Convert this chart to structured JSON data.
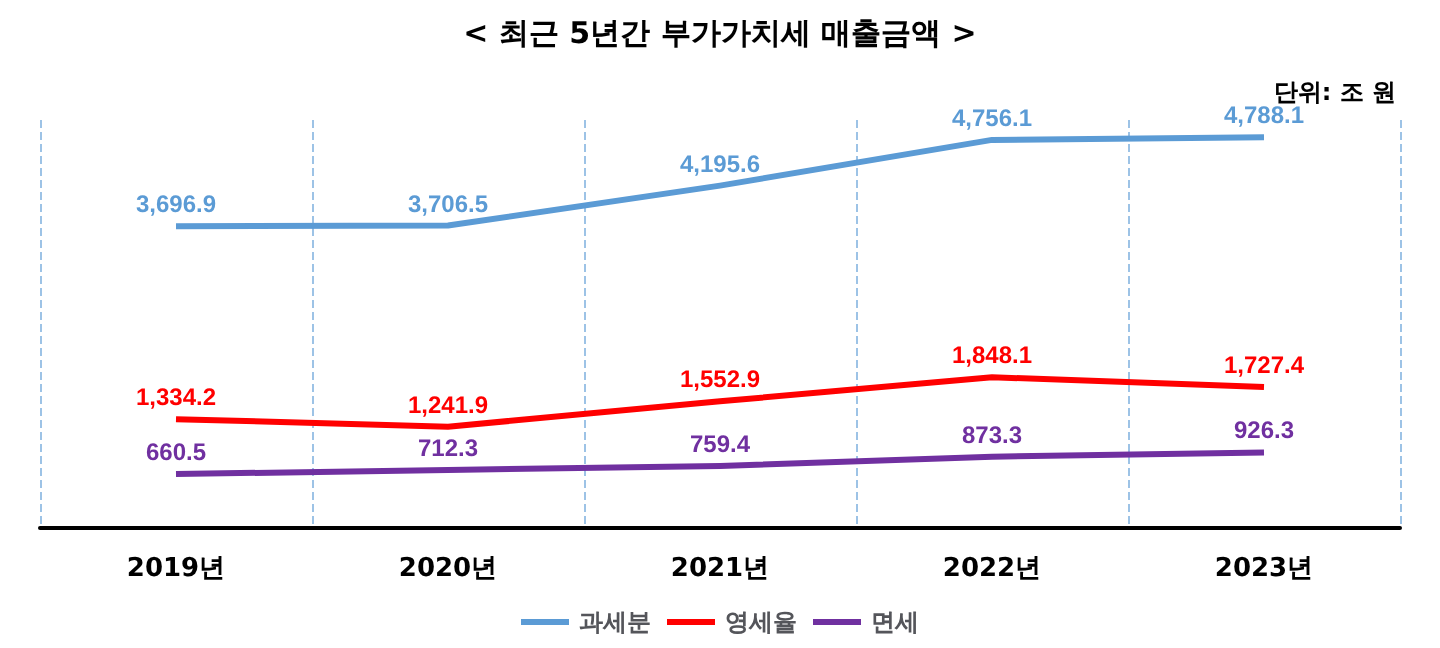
{
  "chart_data": {
    "type": "line",
    "title": "< 최근 5년간 부가가치세 매출금액 >",
    "annotations": [
      "단위: 조 원"
    ],
    "categories": [
      "2019년",
      "2020년",
      "2021년",
      "2022년",
      "2023년"
    ],
    "series": [
      {
        "name": "과세분",
        "color": "#5b9bd5",
        "values": [
          3696.9,
          3706.5,
          4195.6,
          4756.1,
          4788.1
        ],
        "value_labels": [
          "3,696.9",
          "3,706.5",
          "4,195.6",
          "4,756.1",
          "4,788.1"
        ]
      },
      {
        "name": "영세율",
        "color": "#ff0000",
        "values": [
          1334.2,
          1241.9,
          1552.9,
          1848.1,
          1727.4
        ],
        "value_labels": [
          "1,334.2",
          "1,241.9",
          "1,552.9",
          "1,848.1",
          "1,727.4"
        ]
      },
      {
        "name": "면세",
        "color": "#7030a0",
        "values": [
          660.5,
          712.3,
          759.4,
          873.3,
          926.3
        ],
        "value_labels": [
          "660.5",
          "712.3",
          "759.4",
          "873.3",
          "926.3"
        ]
      }
    ],
    "tick_labels": "x",
    "grid": "x",
    "legend": "bottom",
    "marker": "none",
    "line_style": "solid"
  }
}
